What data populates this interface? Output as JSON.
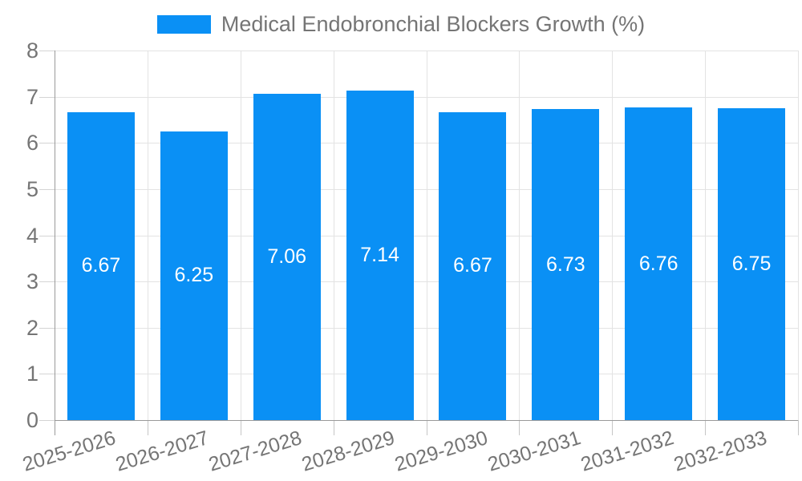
{
  "legend": {
    "label": "Medical Endobronchial Blockers Growth (%)"
  },
  "chart_data": {
    "type": "bar",
    "title": "",
    "series_name": "Medical Endobronchial Blockers Growth (%)",
    "categories": [
      "2025-2026",
      "2026-2027",
      "2027-2028",
      "2028-2029",
      "2029-2030",
      "2030-2031",
      "2031-2032",
      "2032-2033"
    ],
    "values": [
      6.67,
      6.25,
      7.06,
      7.14,
      6.67,
      6.73,
      6.76,
      6.75
    ],
    "value_labels": [
      "6.67",
      "6.25",
      "7.06",
      "7.14",
      "6.67",
      "6.73",
      "6.76",
      "6.75"
    ],
    "xlabel": "",
    "ylabel": "",
    "ylim": [
      0,
      8
    ],
    "y_ticks": [
      0,
      1,
      2,
      3,
      4,
      5,
      6,
      7,
      8
    ],
    "grid": true,
    "legend_position": "top-center",
    "value_labels_inside_bars": true,
    "x_label_rotation_deg": -17
  },
  "colors": {
    "bar": "#0a90f5",
    "grid": "#e3e3e3",
    "axis": "#9a9a9a",
    "tick_y": "#d4d4d4",
    "tick_x": "#c6c6c6",
    "text": "#757575",
    "value_label": "#ffffff",
    "background": "#ffffff"
  }
}
